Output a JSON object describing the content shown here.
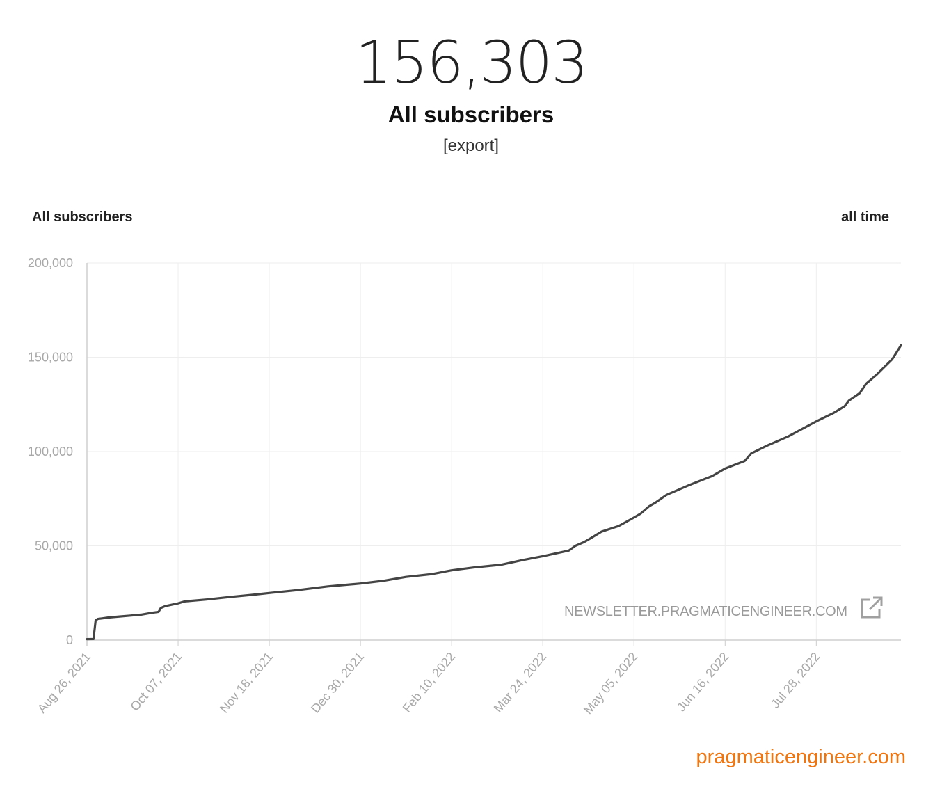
{
  "header": {
    "total": "156,303",
    "label": "All subscribers",
    "export_label": "[export]"
  },
  "chart_header": {
    "title": "All subscribers",
    "range_label": "all time"
  },
  "watermark": {
    "text": "NEWSLETTER.PRAGMATICENGINEER.COM",
    "icon": "external-link-icon"
  },
  "brand": {
    "text": "pragmaticengineer.com",
    "color": "#f0750f"
  },
  "colors": {
    "line": "#444444",
    "grid": "#eeeeee",
    "tick_text": "#a8a8a8"
  },
  "chart_data": {
    "type": "line",
    "title": "All subscribers",
    "xlabel": "",
    "ylabel": "",
    "ylim": [
      0,
      200000
    ],
    "xlim": [
      "2021-08-26",
      "2022-09-05"
    ],
    "y_ticks": [
      "0",
      "50,000",
      "100,000",
      "150,000",
      "200,000"
    ],
    "y_tick_values": [
      0,
      50000,
      100000,
      150000,
      200000
    ],
    "x_ticks": [
      "Aug 26, 2021",
      "Oct 07, 2021",
      "Nov 18, 2021",
      "Dec 30, 2021",
      "Feb 10, 2022",
      "Mar 24, 2022",
      "May 05, 2022",
      "Jun 16, 2022",
      "Jul 28, 2022"
    ],
    "x_tick_dates": [
      "2021-08-26",
      "2021-10-07",
      "2021-11-18",
      "2021-12-30",
      "2022-02-10",
      "2022-03-24",
      "2022-05-05",
      "2022-06-16",
      "2022-07-28"
    ],
    "grid": true,
    "series": [
      {
        "x": [
          "2021-08-26",
          "2021-08-29",
          "2021-08-30",
          "2021-08-31",
          "2021-09-02",
          "2021-09-05",
          "2021-09-10",
          "2021-09-15",
          "2021-09-20",
          "2021-09-25",
          "2021-09-28",
          "2021-09-29",
          "2021-10-01",
          "2021-10-07",
          "2021-10-10",
          "2021-10-20",
          "2021-11-01",
          "2021-11-10",
          "2021-11-18",
          "2021-12-01",
          "2021-12-15",
          "2021-12-30",
          "2022-01-10",
          "2022-01-20",
          "2022-02-01",
          "2022-02-10",
          "2022-02-20",
          "2022-03-05",
          "2022-03-15",
          "2022-03-24",
          "2022-04-05",
          "2022-04-08",
          "2022-04-12",
          "2022-04-15",
          "2022-04-20",
          "2022-04-28",
          "2022-05-05",
          "2022-05-08",
          "2022-05-12",
          "2022-05-15",
          "2022-05-20",
          "2022-05-30",
          "2022-06-10",
          "2022-06-16",
          "2022-06-25",
          "2022-06-28",
          "2022-07-05",
          "2022-07-15",
          "2022-07-28",
          "2022-08-05",
          "2022-08-10",
          "2022-08-12",
          "2022-08-17",
          "2022-08-20",
          "2022-08-25",
          "2022-09-01",
          "2022-09-05"
        ],
        "values": [
          500,
          600,
          10500,
          11200,
          11500,
          12000,
          12500,
          13000,
          13500,
          14500,
          15000,
          17000,
          18000,
          19500,
          20500,
          21500,
          23000,
          24000,
          25000,
          26500,
          28500,
          30000,
          31500,
          33500,
          35000,
          37000,
          38500,
          40000,
          42500,
          44500,
          47500,
          50000,
          52000,
          54000,
          57500,
          60500,
          65000,
          67000,
          71000,
          73000,
          77000,
          82000,
          87000,
          91000,
          95000,
          99000,
          103000,
          108000,
          116000,
          120500,
          124000,
          127000,
          131000,
          136000,
          141000,
          149000,
          156303
        ]
      }
    ]
  }
}
